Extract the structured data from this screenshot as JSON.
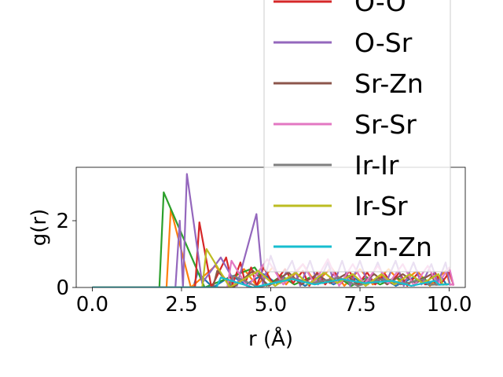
{
  "chart_data": {
    "type": "line",
    "title": "",
    "xlabel": "r (Å)",
    "ylabel": "g(r)",
    "xlim": [
      -0.45,
      10.45
    ],
    "ylim": [
      0,
      3.6
    ],
    "xticks": [
      0.0,
      2.5,
      5.0,
      7.5,
      10.0
    ],
    "xtick_labels": [
      "0.0",
      "2.5",
      "5.0",
      "7.5",
      "10.0"
    ],
    "yticks": [
      0,
      2
    ],
    "ytick_labels": [
      "0",
      "2"
    ],
    "grid": false,
    "legend_position": "upper right, extending above the axes",
    "series": [
      {
        "name": "",
        "color": "#1f77b4",
        "peaks": [
          [
            2.95,
            0.45
          ],
          [
            3.9,
            0.35
          ],
          [
            4.8,
            0.4
          ],
          [
            5.6,
            0.3
          ],
          [
            6.4,
            0.3
          ],
          [
            7.2,
            0.35
          ],
          [
            8.1,
            0.3
          ],
          [
            9.0,
            0.3
          ],
          [
            9.8,
            0.3
          ]
        ]
      },
      {
        "name": "",
        "color": "#ff7f0e",
        "peaks": [
          [
            2.2,
            2.35
          ],
          [
            3.45,
            0.65
          ],
          [
            4.25,
            0.55
          ],
          [
            5.05,
            0.6
          ],
          [
            5.9,
            0.7
          ],
          [
            6.7,
            0.6
          ],
          [
            7.5,
            0.55
          ],
          [
            8.3,
            0.55
          ],
          [
            9.1,
            0.5
          ],
          [
            9.9,
            0.5
          ]
        ]
      },
      {
        "name": "",
        "color": "#2ca02c",
        "peaks": [
          [
            2.0,
            2.85
          ],
          [
            4.55,
            0.6
          ],
          [
            5.3,
            0.35
          ],
          [
            6.1,
            0.3
          ],
          [
            6.9,
            0.3
          ],
          [
            7.7,
            0.3
          ],
          [
            8.5,
            0.3
          ],
          [
            9.3,
            0.3
          ]
        ]
      },
      {
        "name": "O-O",
        "color": "#d62728",
        "peaks": [
          [
            3.0,
            1.95
          ],
          [
            3.75,
            0.9
          ],
          [
            4.15,
            0.75
          ],
          [
            4.45,
            0.6
          ],
          [
            4.8,
            0.6
          ],
          [
            5.4,
            0.55
          ],
          [
            5.9,
            0.5
          ],
          [
            6.3,
            0.45
          ],
          [
            6.8,
            0.45
          ],
          [
            7.2,
            0.5
          ],
          [
            7.7,
            0.45
          ],
          [
            8.2,
            0.4
          ],
          [
            8.6,
            0.45
          ],
          [
            9.1,
            0.4
          ],
          [
            9.6,
            0.45
          ],
          [
            10.0,
            0.45
          ]
        ]
      },
      {
        "name": "O-Sr",
        "color": "#9467bd",
        "peaks": [
          [
            2.45,
            2.0
          ],
          [
            2.65,
            3.4
          ],
          [
            3.6,
            0.9
          ],
          [
            4.6,
            2.2
          ],
          [
            5.0,
            0.95
          ],
          [
            5.6,
            0.8
          ],
          [
            6.1,
            0.8
          ],
          [
            6.6,
            0.75
          ],
          [
            7.0,
            0.8
          ],
          [
            7.5,
            0.8
          ],
          [
            8.0,
            0.75
          ],
          [
            8.5,
            0.8
          ],
          [
            9.0,
            0.75
          ],
          [
            9.5,
            0.7
          ],
          [
            9.9,
            0.75
          ]
        ]
      },
      {
        "name": "Sr-Zn",
        "color": "#8c564b",
        "peaks": [
          [
            3.5,
            0.5
          ],
          [
            4.5,
            0.5
          ],
          [
            5.5,
            0.45
          ],
          [
            6.3,
            0.4
          ],
          [
            7.1,
            0.4
          ],
          [
            7.9,
            0.4
          ],
          [
            8.7,
            0.4
          ],
          [
            9.5,
            0.4
          ]
        ]
      },
      {
        "name": "Sr-Sr",
        "color": "#e377c2",
        "peaks": [
          [
            3.9,
            0.8
          ],
          [
            4.9,
            0.85
          ],
          [
            5.9,
            0.7
          ],
          [
            6.6,
            0.85
          ],
          [
            7.3,
            0.7
          ],
          [
            8.0,
            0.65
          ],
          [
            8.7,
            0.7
          ],
          [
            9.4,
            0.65
          ],
          [
            10.0,
            0.6
          ]
        ]
      },
      {
        "name": "Ir-Ir",
        "color": "#7f7f7f",
        "peaks": [
          [
            3.95,
            0.35
          ],
          [
            5.55,
            0.3
          ],
          [
            6.9,
            0.3
          ],
          [
            8.1,
            0.25
          ],
          [
            9.3,
            0.25
          ]
        ]
      },
      {
        "name": "Ir-Sr",
        "color": "#bcbd22",
        "peaks": [
          [
            3.2,
            1.15
          ],
          [
            4.65,
            0.5
          ],
          [
            5.7,
            0.45
          ],
          [
            6.5,
            0.45
          ],
          [
            7.3,
            0.4
          ],
          [
            8.1,
            0.4
          ],
          [
            8.9,
            0.4
          ],
          [
            9.7,
            0.4
          ]
        ]
      },
      {
        "name": "Zn-Zn",
        "color": "#17becf",
        "peaks": [
          [
            3.6,
            0.3
          ],
          [
            5.6,
            0.25
          ],
          [
            7.0,
            0.25
          ],
          [
            8.4,
            0.2
          ],
          [
            9.6,
            0.2
          ]
        ]
      }
    ]
  }
}
